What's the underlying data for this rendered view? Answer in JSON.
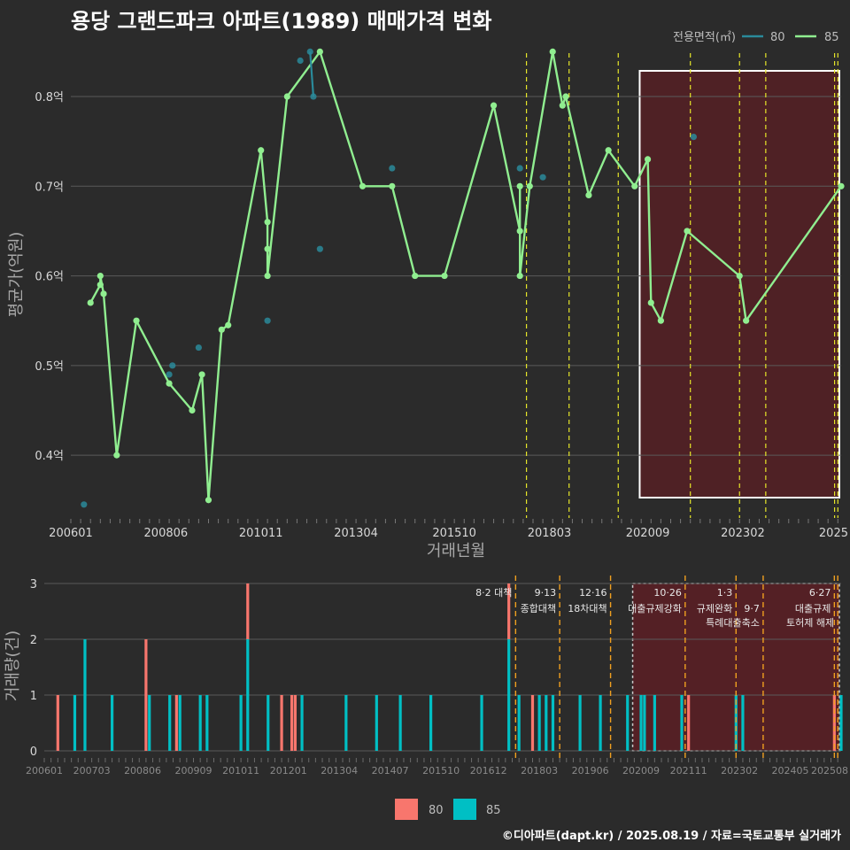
{
  "title": "용당 그랜드파크 아파트(1989) 매매가격 변화",
  "credit": "©디아파트(dapt.kr) / 2025.08.19 / 자료=국토교통부 실거래가",
  "colors": {
    "bg": "#2b2b2b",
    "grid": "#5a5a5a",
    "line_85": "#90ee90",
    "line_80": "#2a8a9a",
    "bar_80": "#f8766d",
    "bar_85": "#00bfc4",
    "highlight": "#5c1f24",
    "vline_top": "#e6e62a",
    "vline_bottom": "#f0a020"
  },
  "chart_data": [
    {
      "type": "line",
      "title": "용당 그랜드파크 아파트(1989) 매매가격 변화",
      "xlabel": "거래년월",
      "ylabel": "평균가(억원)",
      "x_ticks": [
        "200601",
        "200806",
        "201011",
        "201304",
        "201510",
        "201803",
        "202009",
        "202302",
        "2025"
      ],
      "y_ticks": [
        "0.4억",
        "0.5억",
        "0.6억",
        "0.7억",
        "0.8억"
      ],
      "y_tick_values": [
        0.4,
        0.5,
        0.6,
        0.7,
        0.8
      ],
      "ylim": [
        0.33,
        0.88
      ],
      "xlim": [
        "2006-01",
        "2025-08"
      ],
      "legend": {
        "title": "전용면적(㎡)",
        "labels": [
          "80",
          "85"
        ],
        "position": "top-right"
      },
      "highlight_range": [
        "2020-06",
        "2025-08"
      ],
      "event_lines": [
        "2017-08",
        "2018-09",
        "2019-12",
        "2021-10",
        "2023-01",
        "2023-09",
        "2025-06",
        "2025-07"
      ],
      "series": [
        {
          "name": "85",
          "points": [
            [
              "2006-07",
              0.57
            ],
            [
              "2006-10",
              0.59
            ],
            [
              "2006-10",
              0.6
            ],
            [
              "2006-11",
              0.58
            ],
            [
              "2007-03",
              0.4
            ],
            [
              "2007-09",
              0.55
            ],
            [
              "2008-07",
              0.48
            ],
            [
              "2009-02",
              0.45
            ],
            [
              "2009-05",
              0.49
            ],
            [
              "2009-07",
              0.35
            ],
            [
              "2009-11",
              0.54
            ],
            [
              "2010-01",
              0.545
            ],
            [
              "2010-11",
              0.74
            ],
            [
              "2011-01",
              0.66
            ],
            [
              "2011-01",
              0.63
            ],
            [
              "2011-01",
              0.6
            ],
            [
              "2011-07",
              0.8
            ],
            [
              "2012-05",
              0.85
            ],
            [
              "2013-06",
              0.7
            ],
            [
              "2014-03",
              0.7
            ],
            [
              "2014-10",
              0.6
            ],
            [
              "2015-07",
              0.6
            ],
            [
              "2016-10",
              0.79
            ],
            [
              "2017-06",
              0.65
            ],
            [
              "2017-06",
              0.7
            ],
            [
              "2017-06",
              0.6
            ],
            [
              "2017-09",
              0.7
            ],
            [
              "2018-04",
              0.85
            ],
            [
              "2018-07",
              0.79
            ],
            [
              "2018-08",
              0.8
            ],
            [
              "2019-03",
              0.69
            ],
            [
              "2019-09",
              0.74
            ],
            [
              "2020-05",
              0.7
            ],
            [
              "2020-09",
              0.73
            ],
            [
              "2020-10",
              0.57
            ],
            [
              "2021-01",
              0.55
            ],
            [
              "2021-09",
              0.65
            ],
            [
              "2023-01",
              0.6
            ],
            [
              "2023-03",
              0.55
            ],
            [
              "2025-08",
              0.7
            ]
          ]
        },
        {
          "name": "80",
          "points": [
            [
              "2006-05",
              0.345
            ],
            [
              "2008-07",
              0.49
            ],
            [
              "2008-08",
              0.5
            ],
            [
              "2009-04",
              0.52
            ],
            [
              "2011-01",
              0.55
            ],
            [
              "2011-11",
              0.84
            ],
            [
              "2012-02",
              0.85
            ],
            [
              "2012-03",
              0.8
            ],
            [
              "2012-05",
              0.63
            ],
            [
              "2014-03",
              0.72
            ],
            [
              "2017-06",
              0.72
            ],
            [
              "2018-01",
              0.71
            ],
            [
              "2021-11",
              0.755
            ]
          ]
        }
      ]
    },
    {
      "type": "bar",
      "xlabel": "",
      "ylabel": "거래량(건)",
      "x_ticks": [
        "200601",
        "200703",
        "200806",
        "200909",
        "201011",
        "201201",
        "201304",
        "201407",
        "201510",
        "201612",
        "201803",
        "201906",
        "202009",
        "202111",
        "202302",
        "202405",
        "202508"
      ],
      "y_ticks": [
        "0",
        "1",
        "2",
        "3"
      ],
      "ylim": [
        0,
        3
      ],
      "xlim": [
        "2006-01",
        "2025-08"
      ],
      "legend": {
        "labels": [
          "80",
          "85"
        ],
        "position": "bottom"
      },
      "highlight_range": [
        "2020-06",
        "2025-08"
      ],
      "events": [
        {
          "date": "2017-08",
          "l1": "8·2 대책",
          "l2": ""
        },
        {
          "date": "2018-09",
          "l1": "9·13",
          "l2": "종합대책"
        },
        {
          "date": "2019-12",
          "l1": "12·16",
          "l2": "18차대책"
        },
        {
          "date": "2021-10",
          "l1": "10·26",
          "l2": "대출규제강화"
        },
        {
          "date": "2023-01",
          "l1": "1·3",
          "l2": "규제완화"
        },
        {
          "date": "2023-09",
          "l1": "",
          "l2": "9·7",
          "l3": "특례대출축소"
        },
        {
          "date": "2025-06",
          "l1": "6·27",
          "l2": "대출규제"
        },
        {
          "date": "2025-07",
          "l1": "",
          "l2": "",
          "l3": "토허제 해제"
        }
      ],
      "series": [
        {
          "name": "85",
          "points": [
            [
              "2006-10",
              1
            ],
            [
              "2007-01",
              2
            ],
            [
              "2007-09",
              1
            ],
            [
              "2008-08",
              1
            ],
            [
              "2009-02",
              1
            ],
            [
              "2009-05",
              1
            ],
            [
              "2009-11",
              1
            ],
            [
              "2010-01",
              1
            ],
            [
              "2010-11",
              1
            ],
            [
              "2011-01",
              2
            ],
            [
              "2011-07",
              1
            ],
            [
              "2012-05",
              1
            ],
            [
              "2013-06",
              1
            ],
            [
              "2014-03",
              1
            ],
            [
              "2014-10",
              1
            ],
            [
              "2015-07",
              1
            ],
            [
              "2016-10",
              1
            ],
            [
              "2017-06",
              2
            ],
            [
              "2017-09",
              1
            ],
            [
              "2018-03",
              1
            ],
            [
              "2018-05",
              1
            ],
            [
              "2018-07",
              1
            ],
            [
              "2019-03",
              1
            ],
            [
              "2019-09",
              1
            ],
            [
              "2020-05",
              1
            ],
            [
              "2020-09",
              1
            ],
            [
              "2020-10",
              1
            ],
            [
              "2021-01",
              1
            ],
            [
              "2021-09",
              1
            ],
            [
              "2023-01",
              1
            ],
            [
              "2023-03",
              1
            ],
            [
              "2025-08",
              1
            ]
          ]
        },
        {
          "name": "80",
          "points": [
            [
              "2006-05",
              1
            ],
            [
              "2008-07",
              2
            ],
            [
              "2008-08",
              1
            ],
            [
              "2009-04",
              1
            ],
            [
              "2011-01",
              3
            ],
            [
              "2011-11",
              1
            ],
            [
              "2012-02",
              1
            ],
            [
              "2012-03",
              1
            ],
            [
              "2012-05",
              1
            ],
            [
              "2014-03",
              1
            ],
            [
              "2017-06",
              3
            ],
            [
              "2018-01",
              1
            ],
            [
              "2021-11",
              1
            ],
            [
              "2025-06",
              1
            ]
          ]
        }
      ]
    }
  ]
}
